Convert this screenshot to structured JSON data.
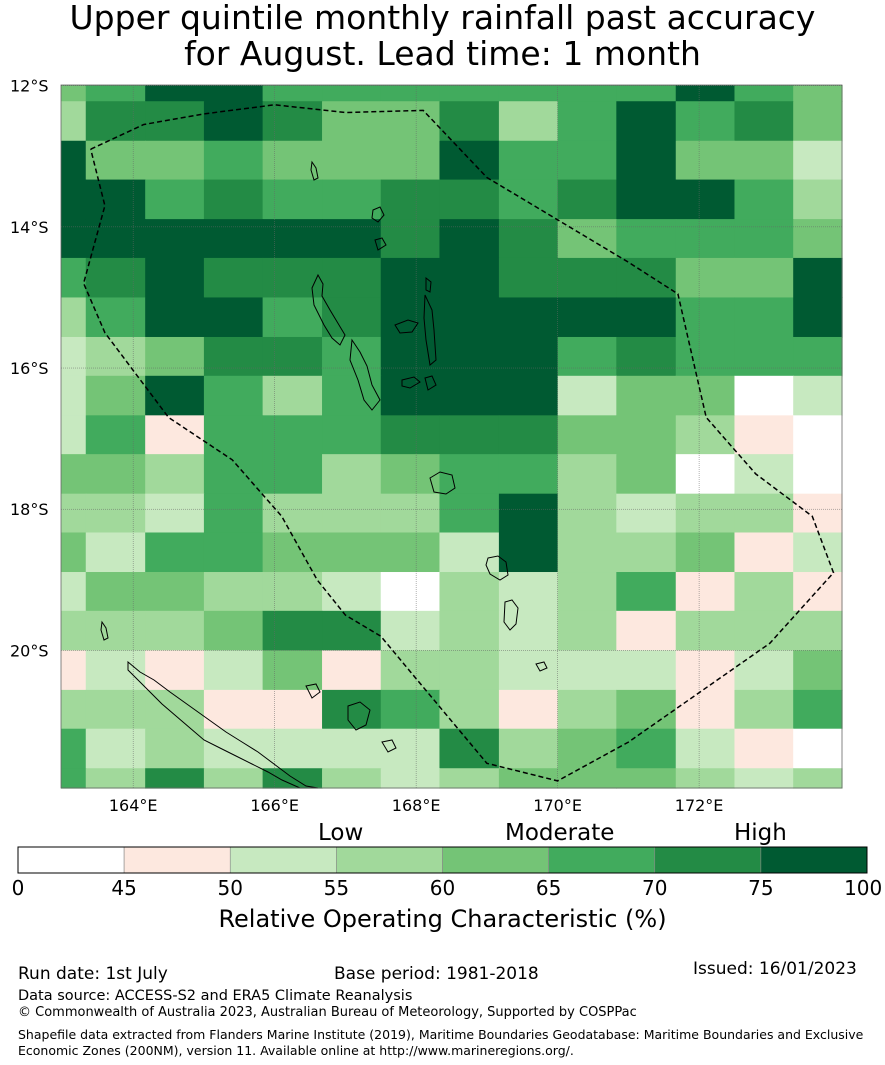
{
  "title": {
    "line1": "Upper quintile monthly rainfall past accuracy",
    "line2": "for August. Lead time: 1 month"
  },
  "map": {
    "lat_labels": [
      "12°S",
      "14°S",
      "16°S",
      "18°S",
      "20°S"
    ],
    "lon_labels": [
      "164°E",
      "166°E",
      "168°E",
      "170°E",
      "172°E"
    ],
    "extent": {
      "lon_min": 162.98,
      "lon_max": 174.02,
      "lat_min": -21.95,
      "lat_max": -11.99
    },
    "grid_lon_edges": [
      162.98,
      163.33,
      164.17,
      165.0,
      165.83,
      166.67,
      167.5,
      168.33,
      169.17,
      170.0,
      170.83,
      171.67,
      172.5,
      173.33,
      174.02
    ],
    "grid_lat_edges": [
      -11.99,
      -12.22,
      -12.78,
      -13.33,
      -13.89,
      -14.44,
      -15.0,
      -15.56,
      -16.11,
      -16.67,
      -17.22,
      -17.78,
      -18.33,
      -18.89,
      -19.44,
      -20.0,
      -20.56,
      -21.11,
      -21.67,
      -21.95
    ],
    "roc_grid": [
      [
        62,
        68,
        78,
        80,
        66,
        66,
        66,
        66,
        66,
        66,
        68,
        78,
        66,
        62
      ],
      [
        57,
        72,
        72,
        80,
        72,
        62,
        62,
        72,
        57,
        66,
        80,
        66,
        72,
        62
      ],
      [
        80,
        62,
        62,
        66,
        62,
        62,
        62,
        80,
        66,
        66,
        80,
        62,
        62,
        52
      ],
      [
        80,
        80,
        66,
        72,
        66,
        66,
        72,
        72,
        66,
        72,
        80,
        80,
        66,
        57
      ],
      [
        80,
        80,
        80,
        80,
        80,
        80,
        72,
        80,
        72,
        62,
        66,
        66,
        66,
        62
      ],
      [
        66,
        72,
        80,
        72,
        72,
        72,
        80,
        80,
        72,
        72,
        72,
        62,
        62,
        80
      ],
      [
        57,
        66,
        80,
        80,
        66,
        72,
        80,
        80,
        80,
        80,
        80,
        66,
        66,
        80
      ],
      [
        52,
        57,
        62,
        72,
        72,
        66,
        80,
        80,
        80,
        66,
        72,
        66,
        66,
        66
      ],
      [
        52,
        62,
        80,
        66,
        57,
        66,
        80,
        80,
        80,
        52,
        62,
        62,
        44,
        52
      ],
      [
        52,
        66,
        48,
        66,
        66,
        66,
        72,
        72,
        72,
        62,
        62,
        57,
        48,
        44
      ],
      [
        62,
        62,
        57,
        66,
        66,
        57,
        62,
        66,
        66,
        57,
        62,
        44,
        52,
        44
      ],
      [
        57,
        57,
        52,
        66,
        57,
        57,
        57,
        66,
        80,
        57,
        52,
        57,
        57,
        48
      ],
      [
        62,
        52,
        66,
        66,
        62,
        62,
        62,
        52,
        80,
        57,
        57,
        62,
        48,
        52
      ],
      [
        52,
        62,
        62,
        57,
        57,
        52,
        44,
        57,
        52,
        57,
        66,
        48,
        57,
        48
      ],
      [
        57,
        57,
        57,
        62,
        72,
        72,
        52,
        57,
        52,
        57,
        48,
        57,
        57,
        57
      ],
      [
        48,
        52,
        48,
        52,
        62,
        48,
        57,
        57,
        52,
        52,
        52,
        48,
        52,
        62
      ],
      [
        57,
        57,
        57,
        48,
        48,
        72,
        66,
        57,
        48,
        57,
        62,
        48,
        57,
        66
      ],
      [
        66,
        52,
        57,
        52,
        52,
        52,
        52,
        72,
        57,
        62,
        66,
        52,
        48,
        44
      ],
      [
        66,
        57,
        72,
        57,
        72,
        57,
        52,
        57,
        62,
        62,
        62,
        57,
        52,
        57
      ]
    ],
    "eez_boundary": [
      [
        163.4,
        -12.9
      ],
      [
        164.15,
        -12.55
      ],
      [
        165.0,
        -12.4
      ],
      [
        166.0,
        -12.27
      ],
      [
        167.0,
        -12.38
      ],
      [
        168.1,
        -12.35
      ],
      [
        169.0,
        -13.3
      ],
      [
        170.0,
        -13.9
      ],
      [
        171.0,
        -14.5
      ],
      [
        171.7,
        -14.95
      ],
      [
        172.1,
        -16.7
      ],
      [
        172.8,
        -17.5
      ],
      [
        173.6,
        -18.1
      ],
      [
        173.9,
        -18.9
      ],
      [
        173.0,
        -19.9
      ],
      [
        172.0,
        -20.6
      ],
      [
        171.0,
        -21.3
      ],
      [
        170.0,
        -21.85
      ],
      [
        169.0,
        -21.6
      ],
      [
        168.0,
        -20.4
      ],
      [
        167.5,
        -19.8
      ],
      [
        167.0,
        -19.5
      ],
      [
        166.6,
        -19.0
      ],
      [
        166.1,
        -18.1
      ],
      [
        165.4,
        -17.3
      ],
      [
        164.5,
        -16.7
      ],
      [
        163.6,
        -15.5
      ],
      [
        163.3,
        -14.8
      ],
      [
        163.6,
        -13.7
      ],
      [
        163.4,
        -12.9
      ]
    ]
  },
  "colorbar": {
    "categories": [
      "Low",
      "Moderate",
      "High"
    ],
    "bounds": [
      0,
      45,
      50,
      55,
      60,
      65,
      70,
      75,
      100
    ],
    "colors": [
      "#ffffff",
      "#fde8df",
      "#c7e9c0",
      "#a1d99b",
      "#74c476",
      "#41ab5d",
      "#238b45",
      "#005a32"
    ],
    "label": "Relative Operating Characteristic (%)"
  },
  "footer": {
    "run_date": "Run date: 1st July",
    "base_period": "Base period: 1981-2018",
    "issued": "Issued: 16/01/2023",
    "data_source": "Data source: ACCESS-S2 and ERA5 Climate Reanalysis",
    "copyright": "© Commonwealth of Australia 2023, Australian Bureau of Meteorology, Supported by COSPPac",
    "shapefile_note": "Shapefile data extracted from Flanders Marine Institute (2019), Maritime Boundaries Geodatabase: Maritime Boundaries and Exclusive Economic Zones (200NM), version 11. Available online at http://www.marineregions.org/."
  }
}
